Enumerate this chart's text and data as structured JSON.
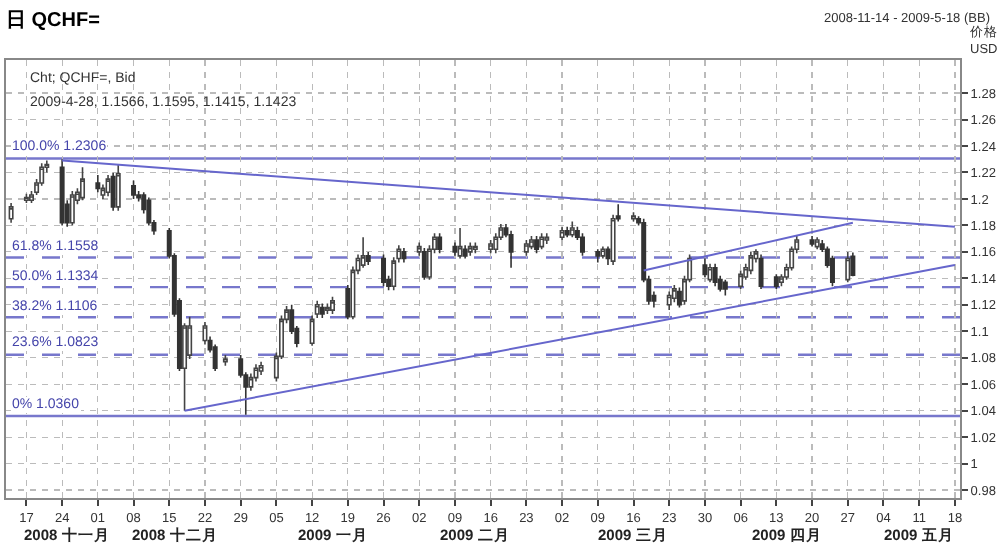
{
  "chart_data": {
    "type": "candlestick",
    "title": "日 QCHF=",
    "subtitle": "2008-11-14 - 2009-5-18 (BB)",
    "ylabel": "价格\nUSD",
    "annotations": [
      "Cht; QCHF=, Bid",
      "2009-4-28, 1.1566, 1.1595, 1.1415, 1.1423"
    ],
    "x": [
      "2008-11-14",
      "2008-11-17",
      "2008-11-18",
      "2008-11-19",
      "2008-11-20",
      "2008-11-21",
      "2008-11-24",
      "2008-11-25",
      "2008-11-26",
      "2008-11-27",
      "2008-11-28",
      "2008-12-01",
      "2008-12-02",
      "2008-12-03",
      "2008-12-04",
      "2008-12-05",
      "2008-12-08",
      "2008-12-09",
      "2008-12-10",
      "2008-12-11",
      "2008-12-12",
      "2008-12-15",
      "2008-12-16",
      "2008-12-17",
      "2008-12-18",
      "2008-12-19",
      "2008-12-22",
      "2008-12-23",
      "2008-12-24",
      "2008-12-26",
      "2008-12-29",
      "2008-12-30",
      "2008-12-31",
      "2009-01-01",
      "2009-01-02",
      "2009-01-05",
      "2009-01-06",
      "2009-01-07",
      "2009-01-08",
      "2009-01-09",
      "2009-01-12",
      "2009-01-13",
      "2009-01-14",
      "2009-01-15",
      "2009-01-16",
      "2009-01-19",
      "2009-01-20",
      "2009-01-21",
      "2009-01-22",
      "2009-01-23",
      "2009-01-26",
      "2009-01-27",
      "2009-01-28",
      "2009-01-29",
      "2009-01-30",
      "2009-02-02",
      "2009-02-03",
      "2009-02-04",
      "2009-02-05",
      "2009-02-06",
      "2009-02-09",
      "2009-02-10",
      "2009-02-11",
      "2009-02-12",
      "2009-02-13",
      "2009-02-16",
      "2009-02-17",
      "2009-02-18",
      "2009-02-19",
      "2009-02-20",
      "2009-02-23",
      "2009-02-24",
      "2009-02-25",
      "2009-02-26",
      "2009-02-27",
      "2009-03-02",
      "2009-03-03",
      "2009-03-04",
      "2009-03-05",
      "2009-03-06",
      "2009-03-09",
      "2009-03-10",
      "2009-03-11",
      "2009-03-12",
      "2009-03-13",
      "2009-03-16",
      "2009-03-17",
      "2009-03-18",
      "2009-03-19",
      "2009-03-20",
      "2009-03-23",
      "2009-03-24",
      "2009-03-25",
      "2009-03-26",
      "2009-03-27",
      "2009-03-30",
      "2009-03-31",
      "2009-04-01",
      "2009-04-02",
      "2009-04-03",
      "2009-04-06",
      "2009-04-07",
      "2009-04-08",
      "2009-04-09",
      "2009-04-10",
      "2009-04-13",
      "2009-04-14",
      "2009-04-15",
      "2009-04-16",
      "2009-04-17",
      "2009-04-20",
      "2009-04-21",
      "2009-04-22",
      "2009-04-23",
      "2009-04-24",
      "2009-04-27",
      "2009-04-28"
    ],
    "ohlc": [
      [
        1.185,
        1.197,
        1.182,
        1.194
      ],
      [
        1.199,
        1.204,
        1.197,
        1.201
      ],
      [
        1.199,
        1.206,
        1.197,
        1.203
      ],
      [
        1.205,
        1.215,
        1.203,
        1.212
      ],
      [
        1.212,
        1.227,
        1.21,
        1.224
      ],
      [
        1.224,
        1.229,
        1.22,
        1.226
      ],
      [
        1.224,
        1.23,
        1.18,
        1.182
      ],
      [
        1.196,
        1.199,
        1.179,
        1.182
      ],
      [
        1.182,
        1.206,
        1.18,
        1.203
      ],
      [
        1.199,
        1.208,
        1.196,
        1.205
      ],
      [
        1.201,
        1.224,
        1.199,
        1.215
      ],
      [
        1.212,
        1.218,
        1.205,
        1.208
      ],
      [
        1.203,
        1.211,
        1.2,
        1.208
      ],
      [
        1.205,
        1.218,
        1.202,
        1.215
      ],
      [
        1.217,
        1.22,
        1.191,
        1.194
      ],
      [
        1.194,
        1.226,
        1.191,
        1.219
      ],
      [
        1.21,
        1.214,
        1.2,
        1.203
      ],
      [
        1.203,
        1.206,
        1.198,
        1.201
      ],
      [
        1.203,
        1.205,
        1.189,
        1.192
      ],
      [
        1.199,
        1.201,
        1.18,
        1.182
      ],
      [
        1.182,
        1.184,
        1.173,
        1.176
      ],
      [
        1.176,
        1.178,
        1.155,
        1.157
      ],
      [
        1.157,
        1.159,
        1.111,
        1.113
      ],
      [
        1.123,
        1.125,
        1.07,
        1.072
      ],
      [
        1.072,
        1.106,
        1.04,
        1.104
      ],
      [
        1.082,
        1.111,
        1.079,
        1.104
      ],
      [
        1.093,
        1.107,
        1.09,
        1.104
      ],
      [
        1.093,
        1.096,
        1.084,
        1.086
      ],
      [
        1.088,
        1.09,
        1.07,
        1.072
      ],
      [
        1.077,
        1.082,
        1.074,
        1.079
      ],
      [
        1.079,
        1.082,
        1.065,
        1.067
      ],
      [
        1.067,
        1.069,
        1.037,
        1.058
      ],
      [
        1.058,
        1.068,
        1.055,
        1.065
      ],
      [
        1.065,
        1.075,
        1.062,
        1.072
      ],
      [
        1.07,
        1.077,
        1.067,
        1.074
      ],
      [
        1.065,
        1.084,
        1.062,
        1.081
      ],
      [
        1.081,
        1.112,
        1.079,
        1.109
      ],
      [
        1.109,
        1.119,
        1.106,
        1.116
      ],
      [
        1.116,
        1.12,
        1.098,
        1.1
      ],
      [
        1.102,
        1.104,
        1.088,
        1.091
      ],
      [
        1.091,
        1.112,
        1.089,
        1.109
      ],
      [
        1.113,
        1.123,
        1.11,
        1.12
      ],
      [
        1.118,
        1.121,
        1.11,
        1.113
      ],
      [
        1.116,
        1.121,
        1.113,
        1.118
      ],
      [
        1.116,
        1.126,
        1.113,
        1.123
      ],
      [
        1.132,
        1.135,
        1.109,
        1.111
      ],
      [
        1.111,
        1.149,
        1.109,
        1.146
      ],
      [
        1.146,
        1.158,
        1.143,
        1.155
      ],
      [
        1.15,
        1.171,
        1.148,
        1.157
      ],
      [
        1.157,
        1.16,
        1.15,
        1.153
      ],
      [
        1.155,
        1.158,
        1.134,
        1.137
      ],
      [
        1.139,
        1.142,
        1.131,
        1.134
      ],
      [
        1.134,
        1.156,
        1.131,
        1.153
      ],
      [
        1.155,
        1.165,
        1.152,
        1.162
      ],
      [
        1.16,
        1.163,
        1.152,
        1.155
      ],
      [
        1.16,
        1.167,
        1.157,
        1.164
      ],
      [
        1.16,
        1.163,
        1.139,
        1.141
      ],
      [
        1.141,
        1.165,
        1.139,
        1.162
      ],
      [
        1.162,
        1.174,
        1.159,
        1.171
      ],
      [
        1.171,
        1.174,
        1.159,
        1.162
      ],
      [
        1.164,
        1.167,
        1.157,
        1.16
      ],
      [
        1.157,
        1.178,
        1.155,
        1.164
      ],
      [
        1.162,
        1.165,
        1.155,
        1.157
      ],
      [
        1.16,
        1.167,
        1.157,
        1.164
      ],
      [
        1.162,
        1.167,
        1.159,
        1.164
      ],
      [
        1.162,
        1.169,
        1.159,
        1.166
      ],
      [
        1.162,
        1.174,
        1.159,
        1.171
      ],
      [
        1.171,
        1.181,
        1.169,
        1.178
      ],
      [
        1.178,
        1.181,
        1.171,
        1.173
      ],
      [
        1.173,
        1.176,
        1.148,
        1.16
      ],
      [
        1.16,
        1.169,
        1.157,
        1.166
      ],
      [
        1.164,
        1.172,
        1.162,
        1.169
      ],
      [
        1.169,
        1.172,
        1.159,
        1.162
      ],
      [
        1.164,
        1.174,
        1.162,
        1.171
      ],
      [
        1.169,
        1.174,
        1.166,
        1.171
      ],
      [
        1.171,
        1.179,
        1.169,
        1.176
      ],
      [
        1.176,
        1.179,
        1.171,
        1.173
      ],
      [
        1.173,
        1.183,
        1.171,
        1.178
      ],
      [
        1.176,
        1.179,
        1.169,
        1.171
      ],
      [
        1.171,
        1.174,
        1.157,
        1.16
      ],
      [
        1.16,
        1.162,
        1.152,
        1.157
      ],
      [
        1.157,
        1.164,
        1.155,
        1.162
      ],
      [
        1.162,
        1.164,
        1.15,
        1.155
      ],
      [
        1.153,
        1.188,
        1.15,
        1.185
      ],
      [
        1.187,
        1.196,
        1.183,
        1.185
      ],
      [
        1.185,
        1.19,
        1.183,
        1.187
      ],
      [
        1.185,
        1.187,
        1.18,
        1.182
      ],
      [
        1.182,
        1.185,
        1.137,
        1.139
      ],
      [
        1.139,
        1.142,
        1.12,
        1.123
      ],
      [
        1.127,
        1.13,
        1.118,
        1.123
      ],
      [
        1.12,
        1.13,
        1.116,
        1.127
      ],
      [
        1.125,
        1.135,
        1.122,
        1.132
      ],
      [
        1.13,
        1.133,
        1.118,
        1.12
      ],
      [
        1.123,
        1.142,
        1.12,
        1.139
      ],
      [
        1.139,
        1.158,
        1.137,
        1.155
      ],
      [
        1.15,
        1.155,
        1.141,
        1.143
      ],
      [
        1.139,
        1.151,
        1.137,
        1.148
      ],
      [
        1.148,
        1.151,
        1.134,
        1.137
      ],
      [
        1.139,
        1.142,
        1.13,
        1.132
      ],
      [
        1.137,
        1.139,
        1.127,
        1.132
      ],
      [
        1.134,
        1.146,
        1.132,
        1.143
      ],
      [
        1.141,
        1.151,
        1.139,
        1.148
      ],
      [
        1.146,
        1.16,
        1.143,
        1.157
      ],
      [
        1.155,
        1.162,
        1.152,
        1.16
      ],
      [
        1.155,
        1.158,
        1.132,
        1.134
      ],
      [
        1.141,
        1.143,
        1.132,
        1.134
      ],
      [
        1.137,
        1.143,
        1.134,
        1.141
      ],
      [
        1.141,
        1.151,
        1.139,
        1.148
      ],
      [
        1.148,
        1.164,
        1.146,
        1.162
      ],
      [
        1.162,
        1.172,
        1.159,
        1.169
      ],
      [
        1.169,
        1.172,
        1.164,
        1.166
      ],
      [
        1.164,
        1.171,
        1.162,
        1.169
      ],
      [
        1.166,
        1.169,
        1.16,
        1.162
      ],
      [
        1.162,
        1.164,
        1.148,
        1.15
      ],
      [
        1.155,
        1.157,
        1.134,
        1.137
      ],
      [
        1.139,
        1.16,
        1.137,
        1.155
      ],
      [
        1.1566,
        1.1595,
        1.1415,
        1.1423
      ]
    ],
    "series": [
      {
        "type": "line",
        "color": "#6666cc",
        "x": [
          "2008-11-24",
          "2009-05-18"
        ],
        "values": [
          1.229,
          1.179
        ]
      },
      {
        "type": "line",
        "color": "#6666cc",
        "x": [
          "2008-12-18",
          "2009-05-18"
        ],
        "values": [
          1.04,
          1.15
        ]
      },
      {
        "type": "line",
        "color": "#6666cc",
        "x": [
          "2009-03-18",
          "2009-04-28"
        ],
        "values": [
          1.146,
          1.182
        ]
      }
    ],
    "ref_lines": [
      {
        "axis": "y",
        "value": 1.2306,
        "label": "100.0% 1.2306",
        "color": "#7777cc",
        "line_style": "solid"
      },
      {
        "axis": "y",
        "value": 1.1558,
        "label": "61.8% 1.1558",
        "color": "#7777cc",
        "line_style": "dashed"
      },
      {
        "axis": "y",
        "value": 1.1334,
        "label": "50.0% 1.1334",
        "color": "#7777cc",
        "line_style": "dashed"
      },
      {
        "axis": "y",
        "value": 1.1106,
        "label": "38.2% 1.1106",
        "color": "#7777cc",
        "line_style": "dashed"
      },
      {
        "axis": "y",
        "value": 1.0823,
        "label": "23.6% 1.0823",
        "color": "#7777cc",
        "line_style": "dashed"
      },
      {
        "axis": "y",
        "value": 1.036,
        "label": "0% 1.0360",
        "color": "#7777cc",
        "line_style": "solid"
      }
    ],
    "xlim": [
      "2008-11-13",
      "2009-05-19"
    ],
    "xticks": [
      {
        "value": "2008-11-17",
        "label": "17"
      },
      {
        "value": "2008-11-24",
        "label": "24"
      },
      {
        "value": "2008-12-01",
        "label": "01"
      },
      {
        "value": "2008-12-08",
        "label": "08"
      },
      {
        "value": "2008-12-15",
        "label": "15"
      },
      {
        "value": "2008-12-22",
        "label": "22"
      },
      {
        "value": "2008-12-29",
        "label": "29"
      },
      {
        "value": "2009-01-05",
        "label": "05"
      },
      {
        "value": "2009-01-12",
        "label": "12"
      },
      {
        "value": "2009-01-19",
        "label": "19"
      },
      {
        "value": "2009-01-26",
        "label": "26"
      },
      {
        "value": "2009-02-02",
        "label": "02"
      },
      {
        "value": "2009-02-09",
        "label": "09"
      },
      {
        "value": "2009-02-16",
        "label": "16"
      },
      {
        "value": "2009-02-23",
        "label": "23"
      },
      {
        "value": "2009-03-02",
        "label": "02"
      },
      {
        "value": "2009-03-09",
        "label": "09"
      },
      {
        "value": "2009-03-16",
        "label": "16"
      },
      {
        "value": "2009-03-23",
        "label": "23"
      },
      {
        "value": "2009-03-30",
        "label": "30"
      },
      {
        "value": "2009-04-06",
        "label": "06"
      },
      {
        "value": "2009-04-13",
        "label": "13"
      },
      {
        "value": "2009-04-20",
        "label": "20"
      },
      {
        "value": "2009-04-27",
        "label": "27"
      },
      {
        "value": "2009-05-04",
        "label": "04"
      },
      {
        "value": "2009-05-11",
        "label": "11"
      },
      {
        "value": "2009-05-18",
        "label": "18"
      }
    ],
    "x2lim": [
      "2008-11-13",
      "2009-05-19"
    ],
    "x2ticks": [
      {
        "value": "2008-11-25",
        "label": "2008 十一月"
      },
      {
        "value": "2008-12-16",
        "label": "2008 十二月"
      },
      {
        "value": "2009-01-16",
        "label": "2009 一月"
      },
      {
        "value": "2009-02-13",
        "label": "2009 二月"
      },
      {
        "value": "2009-03-16",
        "label": "2009 三月"
      },
      {
        "value": "2009-04-15",
        "label": "2009 四月"
      },
      {
        "value": "2009-05-11",
        "label": "2009 五月"
      }
    ],
    "ylim": [
      0.974,
      1.305
    ],
    "yticks": [
      0.98,
      1,
      1.02,
      1.04,
      1.06,
      1.08,
      1.1,
      1.12,
      1.14,
      1.16,
      1.18,
      1.2,
      1.22,
      1.24,
      1.26,
      1.28
    ],
    "grid": true
  }
}
